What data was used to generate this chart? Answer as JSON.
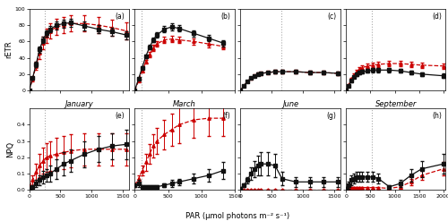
{
  "months": [
    "January",
    "March",
    "June",
    "September"
  ],
  "panels_top": [
    "(a)",
    "(b)",
    "(c)",
    "(d)"
  ],
  "panels_bot": [
    "(e)",
    "(f)",
    "(g)",
    "(h)"
  ],
  "ambient_par": [
    250,
    100,
    650,
    530
  ],
  "retr_black": {
    "January": {
      "x": [
        0,
        56,
        111,
        167,
        222,
        278,
        333,
        444,
        556,
        667,
        889,
        1111,
        1333,
        1556
      ],
      "y": [
        0,
        15,
        32,
        50,
        62,
        70,
        75,
        80,
        82,
        83,
        79,
        75,
        72,
        68
      ],
      "se": [
        0,
        2,
        3,
        4,
        4,
        4,
        4,
        5,
        5,
        5,
        5,
        5,
        5,
        5
      ]
    },
    "March": {
      "x": [
        0,
        56,
        111,
        167,
        222,
        278,
        333,
        444,
        556,
        667,
        889,
        1111,
        1333
      ],
      "y": [
        0,
        14,
        28,
        42,
        53,
        62,
        68,
        75,
        78,
        76,
        70,
        64,
        58
      ],
      "se": [
        0,
        1,
        2,
        2.5,
        3,
        3,
        3.5,
        4,
        4,
        4,
        4,
        4,
        4
      ]
    },
    "June": {
      "x": [
        0,
        56,
        111,
        167,
        222,
        278,
        333,
        444,
        556,
        667,
        889,
        1111,
        1333,
        1556
      ],
      "y": [
        0,
        6,
        11,
        15,
        18,
        20,
        21,
        22,
        23,
        23,
        23,
        22,
        22,
        21
      ],
      "se": [
        0,
        0.5,
        0.8,
        1,
        1.2,
        1.5,
        1.5,
        1.5,
        2,
        2,
        2,
        2,
        2,
        2
      ]
    },
    "September": {
      "x": [
        0,
        56,
        111,
        167,
        222,
        278,
        333,
        444,
        556,
        667,
        889,
        1111,
        1333,
        1556,
        2000
      ],
      "y": [
        0,
        6,
        12,
        17,
        20,
        22,
        23,
        24,
        25,
        25,
        25,
        24,
        22,
        20,
        18
      ],
      "se": [
        0,
        1,
        1.5,
        2,
        2,
        2,
        2,
        2.5,
        2.5,
        2.5,
        2.5,
        2.5,
        2.5,
        2.5,
        2.5
      ]
    }
  },
  "retr_red": {
    "January": {
      "x": [
        0,
        56,
        111,
        167,
        222,
        278,
        333,
        444,
        556,
        667,
        889,
        1111,
        1333,
        1556
      ],
      "y": [
        0,
        14,
        30,
        46,
        58,
        67,
        73,
        78,
        80,
        82,
        82,
        80,
        77,
        73
      ],
      "se": [
        0,
        3,
        5,
        7,
        8,
        9,
        9,
        10,
        10,
        10,
        10,
        10,
        10,
        10
      ]
    },
    "March": {
      "x": [
        0,
        56,
        111,
        167,
        222,
        278,
        333,
        444,
        556,
        667,
        889,
        1111,
        1333
      ],
      "y": [
        0,
        12,
        24,
        35,
        44,
        52,
        57,
        62,
        63,
        62,
        60,
        57,
        54
      ],
      "se": [
        0,
        1.5,
        2,
        2.5,
        3,
        3.5,
        3.5,
        4,
        4,
        4,
        4,
        4,
        4
      ]
    },
    "June": {
      "x": [
        0,
        56,
        111,
        167,
        222,
        278,
        333,
        444,
        556,
        667,
        889,
        1111,
        1333,
        1556
      ],
      "y": [
        0,
        6,
        11,
        15,
        18,
        20,
        21,
        22,
        23,
        23,
        23,
        22,
        22,
        21
      ],
      "se": [
        0,
        0.5,
        1,
        1.2,
        1.5,
        1.5,
        2,
        2,
        2,
        2,
        2,
        2,
        2,
        2
      ]
    },
    "September": {
      "x": [
        0,
        56,
        111,
        167,
        222,
        278,
        333,
        444,
        556,
        667,
        889,
        1111,
        1333,
        1556,
        2000
      ],
      "y": [
        0,
        7,
        14,
        19,
        23,
        26,
        28,
        30,
        31,
        32,
        33,
        33,
        32,
        31,
        30
      ],
      "se": [
        0,
        1,
        1.5,
        2,
        2.5,
        3,
        3,
        3,
        3,
        3,
        3,
        3,
        3.5,
        3.5,
        3.5
      ]
    }
  },
  "npq_black": {
    "January": {
      "x": [
        0,
        56,
        111,
        167,
        222,
        278,
        333,
        444,
        556,
        667,
        889,
        1111,
        1333,
        1556
      ],
      "y": [
        0.01,
        0.02,
        0.04,
        0.06,
        0.08,
        0.09,
        0.1,
        0.13,
        0.16,
        0.18,
        0.22,
        0.25,
        0.27,
        0.28
      ],
      "se": [
        0.01,
        0.01,
        0.02,
        0.03,
        0.04,
        0.04,
        0.05,
        0.06,
        0.07,
        0.07,
        0.08,
        0.08,
        0.08,
        0.09
      ]
    },
    "March": {
      "x": [
        0,
        56,
        111,
        167,
        222,
        278,
        333,
        444,
        556,
        667,
        889,
        1111,
        1333
      ],
      "y": [
        0.03,
        0.04,
        0.02,
        0.02,
        0.02,
        0.02,
        0.02,
        0.03,
        0.04,
        0.05,
        0.07,
        0.09,
        0.12
      ],
      "se": [
        0.01,
        0.02,
        0.01,
        0.01,
        0.01,
        0.01,
        0.01,
        0.01,
        0.02,
        0.02,
        0.03,
        0.04,
        0.05
      ]
    },
    "June": {
      "x": [
        0,
        56,
        111,
        167,
        222,
        278,
        333,
        444,
        556,
        667,
        889,
        1111,
        1333,
        1556
      ],
      "y": [
        0.01,
        0.03,
        0.06,
        0.1,
        0.13,
        0.15,
        0.16,
        0.16,
        0.15,
        0.07,
        0.05,
        0.05,
        0.05,
        0.05
      ],
      "se": [
        0.005,
        0.01,
        0.02,
        0.04,
        0.05,
        0.06,
        0.07,
        0.07,
        0.07,
        0.04,
        0.03,
        0.03,
        0.03,
        0.03
      ]
    },
    "September": {
      "x": [
        0,
        56,
        111,
        167,
        222,
        278,
        333,
        444,
        556,
        667,
        889,
        1111,
        1333,
        1556,
        2000
      ],
      "y": [
        0.01,
        0.03,
        0.06,
        0.07,
        0.08,
        0.08,
        0.08,
        0.08,
        0.08,
        0.07,
        0.02,
        0.04,
        0.09,
        0.13,
        0.16
      ],
      "se": [
        0.01,
        0.02,
        0.03,
        0.03,
        0.03,
        0.03,
        0.03,
        0.03,
        0.03,
        0.03,
        0.01,
        0.02,
        0.04,
        0.05,
        0.06
      ]
    }
  },
  "npq_red": {
    "January": {
      "x": [
        0,
        56,
        111,
        167,
        222,
        278,
        333,
        444,
        556,
        667,
        889,
        1111,
        1333,
        1556
      ],
      "y": [
        0.02,
        0.06,
        0.11,
        0.15,
        0.18,
        0.2,
        0.21,
        0.22,
        0.23,
        0.24,
        0.25,
        0.25,
        0.25,
        0.25
      ],
      "se": [
        0.01,
        0.03,
        0.05,
        0.07,
        0.08,
        0.09,
        0.09,
        0.1,
        0.1,
        0.1,
        0.1,
        0.1,
        0.1,
        0.1
      ]
    },
    "March": {
      "x": [
        0,
        56,
        111,
        167,
        222,
        278,
        333,
        444,
        556,
        667,
        889,
        1111,
        1333
      ],
      "y": [
        0.03,
        0.07,
        0.12,
        0.17,
        0.22,
        0.27,
        0.3,
        0.34,
        0.37,
        0.4,
        0.43,
        0.44,
        0.44
      ],
      "se": [
        0.01,
        0.02,
        0.03,
        0.05,
        0.06,
        0.07,
        0.08,
        0.09,
        0.1,
        0.11,
        0.11,
        0.11,
        0.11
      ]
    },
    "June": {
      "x": [
        0,
        56,
        111,
        167,
        222,
        278,
        333,
        444,
        556,
        667,
        889,
        1111,
        1333,
        1556
      ],
      "y": [
        0.003,
        0.003,
        0.003,
        0.003,
        0.003,
        0.003,
        0.003,
        0.003,
        0.003,
        0.003,
        0.003,
        0.003,
        0.003,
        0.003
      ],
      "se": [
        0.001,
        0.001,
        0.001,
        0.001,
        0.001,
        0.001,
        0.001,
        0.001,
        0.001,
        0.001,
        0.001,
        0.001,
        0.001,
        0.001
      ]
    },
    "September": {
      "x": [
        0,
        56,
        111,
        167,
        222,
        278,
        333,
        444,
        556,
        667,
        889,
        1111,
        1333,
        1556,
        2000
      ],
      "y": [
        0.005,
        0.01,
        0.015,
        0.015,
        0.015,
        0.015,
        0.015,
        0.015,
        0.015,
        0.015,
        0.01,
        0.02,
        0.05,
        0.09,
        0.13
      ],
      "se": [
        0.005,
        0.005,
        0.005,
        0.005,
        0.005,
        0.005,
        0.005,
        0.005,
        0.005,
        0.005,
        0.005,
        0.01,
        0.02,
        0.03,
        0.04
      ]
    }
  },
  "retr_ylim": [
    0,
    100
  ],
  "npq_ylim": [
    0,
    0.5
  ],
  "retr_yticks": [
    0,
    20,
    40,
    60,
    80,
    100
  ],
  "npq_yticks": [
    0.0,
    0.1,
    0.2,
    0.3,
    0.4
  ],
  "retr_ylabel": "rETR",
  "npq_ylabel": "NPQ",
  "xlabel": "PAR (μmol photons m⁻² s⁻¹)",
  "black_color": "#111111",
  "red_color": "#cc0000",
  "vline_color": "#aaaaaa",
  "bg_color": "#ffffff",
  "linewidth": 0.9,
  "markersize": 2.5,
  "capsize": 1.5,
  "elinewidth": 0.7
}
